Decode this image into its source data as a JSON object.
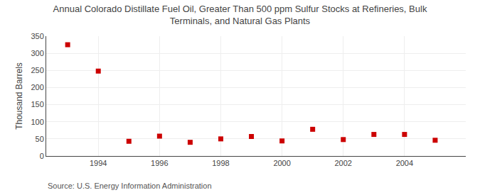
{
  "chart_data": {
    "type": "scatter",
    "title": "Annual Colorado Distillate Fuel Oil, Greater Than 500 ppm Sulfur Stocks at Refineries, Bulk\nTerminals, and Natural Gas Plants",
    "y_label": "Thousand Barrels",
    "annotations": [
      "Source: U.S. Energy Information Administration"
    ],
    "x": [
      1993,
      1994,
      1995,
      1996,
      1997,
      1998,
      1999,
      2000,
      2001,
      2002,
      2003,
      2004,
      2005
    ],
    "values": [
      325,
      248,
      43,
      58,
      40,
      50,
      57,
      44,
      78,
      48,
      63,
      63,
      46
    ],
    "color": "#cc0000",
    "marker": "square",
    "xlim": [
      1992.3,
      2006.0
    ],
    "xticks": [
      1994,
      1996,
      1998,
      2000,
      2002,
      2004
    ],
    "ylim": [
      0,
      350
    ],
    "yticks": [
      0,
      50,
      100,
      150,
      200,
      250,
      300,
      350
    ],
    "grid": true
  }
}
